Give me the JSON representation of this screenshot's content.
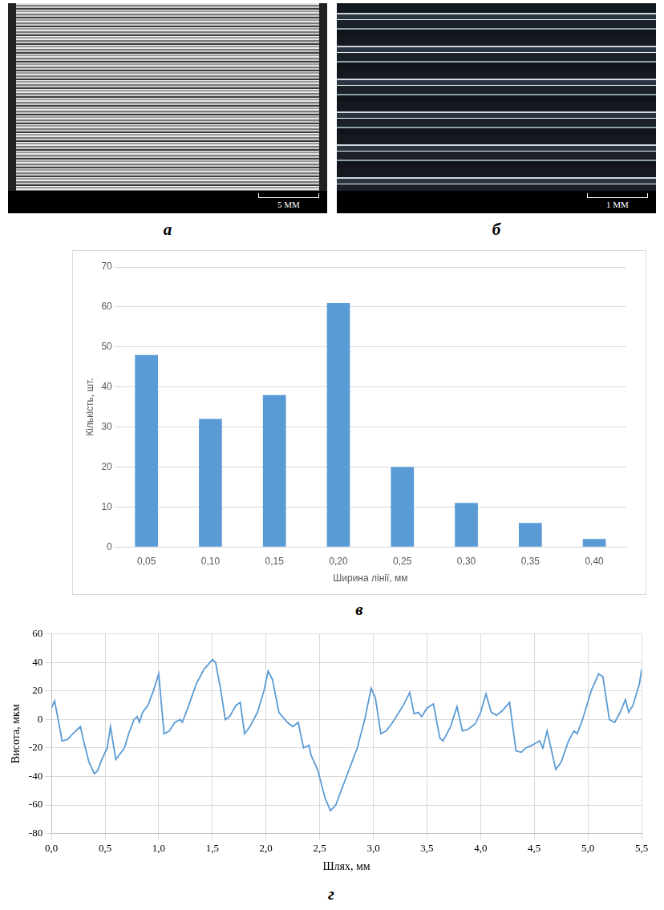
{
  "images": [
    {
      "panel": "а",
      "scale_bar": "5 ММ"
    },
    {
      "panel": "б",
      "scale_bar": "1 ММ"
    }
  ],
  "chart_data": [
    {
      "panel": "в",
      "type": "bar",
      "x_label": "Ширина лінії, мм",
      "y_label": "Кількість, шт.",
      "categories": [
        "0,05",
        "0,10",
        "0,15",
        "0,20",
        "0,25",
        "0,30",
        "0,35",
        "0,40"
      ],
      "values": [
        48,
        32,
        38,
        61,
        20,
        11,
        6,
        2
      ],
      "color": "#5b9bd5",
      "ylim": [
        0,
        70
      ],
      "yticks": [
        0,
        10,
        20,
        30,
        40,
        50,
        60,
        70
      ],
      "grid": true
    },
    {
      "panel": "г",
      "type": "line",
      "x_label": "Шлях, мм",
      "y_label": "Висота, мкм",
      "x": [
        0,
        0.03,
        0.1,
        0.15,
        0.2,
        0.27,
        0.3,
        0.35,
        0.4,
        0.43,
        0.47,
        0.52,
        0.55,
        0.6,
        0.68,
        0.72,
        0.77,
        0.8,
        0.82,
        0.85,
        0.9,
        0.95,
        1.0,
        1.05,
        1.1,
        1.15,
        1.2,
        1.22,
        1.28,
        1.35,
        1.42,
        1.5,
        1.53,
        1.58,
        1.62,
        1.66,
        1.72,
        1.76,
        1.8,
        1.85,
        1.92,
        1.98,
        2.02,
        2.06,
        2.12,
        2.2,
        2.25,
        2.3,
        2.35,
        2.4,
        2.42,
        2.48,
        2.55,
        2.6,
        2.65,
        2.75,
        2.85,
        2.92,
        2.98,
        3.02,
        3.07,
        3.12,
        3.18,
        3.28,
        3.34,
        3.38,
        3.42,
        3.45,
        3.5,
        3.56,
        3.62,
        3.65,
        3.72,
        3.78,
        3.83,
        3.88,
        3.95,
        4.0,
        4.05,
        4.1,
        4.15,
        4.2,
        4.27,
        4.33,
        4.38,
        4.42,
        4.48,
        4.55,
        4.58,
        4.62,
        4.7,
        4.75,
        4.82,
        4.87,
        4.9,
        4.95,
        5.03,
        5.1,
        5.14,
        5.2,
        5.25,
        5.3,
        5.35,
        5.38,
        5.42,
        5.48,
        5.5
      ],
      "values": [
        8,
        13,
        -15,
        -14,
        -10,
        -5,
        -15,
        -30,
        -38,
        -36,
        -28,
        -20,
        -5,
        -28,
        -20,
        -10,
        0,
        2,
        -2,
        5,
        10,
        20,
        32,
        -10,
        -8,
        -2,
        0,
        -2,
        10,
        25,
        35,
        42,
        40,
        20,
        0,
        2,
        10,
        12,
        -10,
        -5,
        5,
        20,
        34,
        28,
        5,
        -2,
        -5,
        -2,
        -20,
        -18,
        -25,
        -35,
        -55,
        -64,
        -60,
        -40,
        -20,
        0,
        22,
        15,
        -10,
        -8,
        -2,
        10,
        19,
        4,
        5,
        2,
        8,
        11,
        -13,
        -15,
        -5,
        9,
        -8,
        -7,
        -3,
        5,
        18,
        5,
        3,
        6,
        12,
        -22,
        -23,
        -20,
        -18,
        -15,
        -20,
        -8,
        -35,
        -30,
        -15,
        -8,
        -10,
        0,
        20,
        32,
        30,
        0,
        -2,
        5,
        14,
        5,
        10,
        25,
        35
      ],
      "color": "#5b9bd5",
      "xlim": [
        0,
        5.5
      ],
      "xticks": [
        {
          "value": 0,
          "label": "0,0"
        },
        {
          "value": 0.5,
          "label": "0,5"
        },
        {
          "value": 1,
          "label": "1,0"
        },
        {
          "value": 1.5,
          "label": "1,5"
        },
        {
          "value": 2,
          "label": "2,0"
        },
        {
          "value": 2.5,
          "label": "2,5"
        },
        {
          "value": 3,
          "label": "3,0"
        },
        {
          "value": 3.5,
          "label": "3,5"
        },
        {
          "value": 4,
          "label": "4,0"
        },
        {
          "value": 4.5,
          "label": "4,5"
        },
        {
          "value": 5,
          "label": "5,0"
        },
        {
          "value": 5.5,
          "label": "5,5"
        }
      ],
      "ylim": [
        -80,
        60
      ],
      "yticks": [
        -80,
        -60,
        -40,
        -20,
        0,
        20,
        40,
        60
      ],
      "grid": true
    }
  ]
}
